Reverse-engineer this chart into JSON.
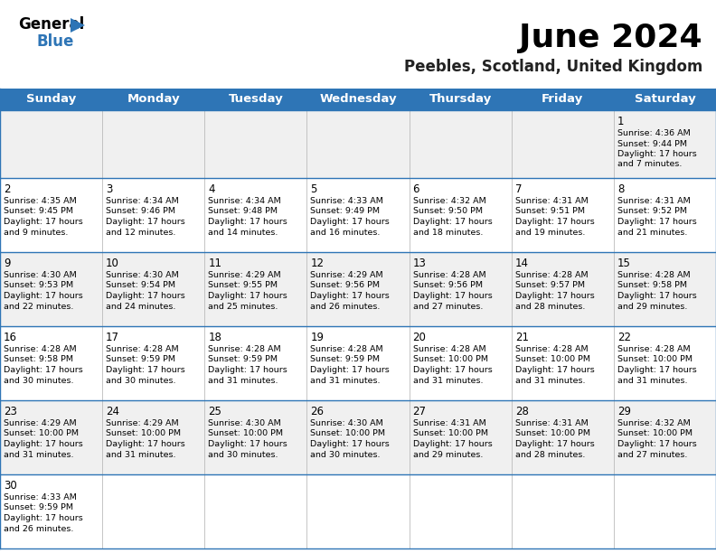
{
  "title": "June 2024",
  "subtitle": "Peebles, Scotland, United Kingdom",
  "header_color": "#2E75B6",
  "header_text_color": "#FFFFFF",
  "day_headers": [
    "Sunday",
    "Monday",
    "Tuesday",
    "Wednesday",
    "Thursday",
    "Friday",
    "Saturday"
  ],
  "bg_color": "#FFFFFF",
  "alt_row_color": "#F0F0F0",
  "cell_border_color": "#2E75B6",
  "days": [
    {
      "day": 1,
      "col": 6,
      "row": 0,
      "sunrise": "4:36 AM",
      "sunset": "9:44 PM",
      "daylight": "17 hours and 7 minutes."
    },
    {
      "day": 2,
      "col": 0,
      "row": 1,
      "sunrise": "4:35 AM",
      "sunset": "9:45 PM",
      "daylight": "17 hours and 9 minutes."
    },
    {
      "day": 3,
      "col": 1,
      "row": 1,
      "sunrise": "4:34 AM",
      "sunset": "9:46 PM",
      "daylight": "17 hours and 12 minutes."
    },
    {
      "day": 4,
      "col": 2,
      "row": 1,
      "sunrise": "4:34 AM",
      "sunset": "9:48 PM",
      "daylight": "17 hours and 14 minutes."
    },
    {
      "day": 5,
      "col": 3,
      "row": 1,
      "sunrise": "4:33 AM",
      "sunset": "9:49 PM",
      "daylight": "17 hours and 16 minutes."
    },
    {
      "day": 6,
      "col": 4,
      "row": 1,
      "sunrise": "4:32 AM",
      "sunset": "9:50 PM",
      "daylight": "17 hours and 18 minutes."
    },
    {
      "day": 7,
      "col": 5,
      "row": 1,
      "sunrise": "4:31 AM",
      "sunset": "9:51 PM",
      "daylight": "17 hours and 19 minutes."
    },
    {
      "day": 8,
      "col": 6,
      "row": 1,
      "sunrise": "4:31 AM",
      "sunset": "9:52 PM",
      "daylight": "17 hours and 21 minutes."
    },
    {
      "day": 9,
      "col": 0,
      "row": 2,
      "sunrise": "4:30 AM",
      "sunset": "9:53 PM",
      "daylight": "17 hours and 22 minutes."
    },
    {
      "day": 10,
      "col": 1,
      "row": 2,
      "sunrise": "4:30 AM",
      "sunset": "9:54 PM",
      "daylight": "17 hours and 24 minutes."
    },
    {
      "day": 11,
      "col": 2,
      "row": 2,
      "sunrise": "4:29 AM",
      "sunset": "9:55 PM",
      "daylight": "17 hours and 25 minutes."
    },
    {
      "day": 12,
      "col": 3,
      "row": 2,
      "sunrise": "4:29 AM",
      "sunset": "9:56 PM",
      "daylight": "17 hours and 26 minutes."
    },
    {
      "day": 13,
      "col": 4,
      "row": 2,
      "sunrise": "4:28 AM",
      "sunset": "9:56 PM",
      "daylight": "17 hours and 27 minutes."
    },
    {
      "day": 14,
      "col": 5,
      "row": 2,
      "sunrise": "4:28 AM",
      "sunset": "9:57 PM",
      "daylight": "17 hours and 28 minutes."
    },
    {
      "day": 15,
      "col": 6,
      "row": 2,
      "sunrise": "4:28 AM",
      "sunset": "9:58 PM",
      "daylight": "17 hours and 29 minutes."
    },
    {
      "day": 16,
      "col": 0,
      "row": 3,
      "sunrise": "4:28 AM",
      "sunset": "9:58 PM",
      "daylight": "17 hours and 30 minutes."
    },
    {
      "day": 17,
      "col": 1,
      "row": 3,
      "sunrise": "4:28 AM",
      "sunset": "9:59 PM",
      "daylight": "17 hours and 30 minutes."
    },
    {
      "day": 18,
      "col": 2,
      "row": 3,
      "sunrise": "4:28 AM",
      "sunset": "9:59 PM",
      "daylight": "17 hours and 31 minutes."
    },
    {
      "day": 19,
      "col": 3,
      "row": 3,
      "sunrise": "4:28 AM",
      "sunset": "9:59 PM",
      "daylight": "17 hours and 31 minutes."
    },
    {
      "day": 20,
      "col": 4,
      "row": 3,
      "sunrise": "4:28 AM",
      "sunset": "10:00 PM",
      "daylight": "17 hours and 31 minutes."
    },
    {
      "day": 21,
      "col": 5,
      "row": 3,
      "sunrise": "4:28 AM",
      "sunset": "10:00 PM",
      "daylight": "17 hours and 31 minutes."
    },
    {
      "day": 22,
      "col": 6,
      "row": 3,
      "sunrise": "4:28 AM",
      "sunset": "10:00 PM",
      "daylight": "17 hours and 31 minutes."
    },
    {
      "day": 23,
      "col": 0,
      "row": 4,
      "sunrise": "4:29 AM",
      "sunset": "10:00 PM",
      "daylight": "17 hours and 31 minutes."
    },
    {
      "day": 24,
      "col": 1,
      "row": 4,
      "sunrise": "4:29 AM",
      "sunset": "10:00 PM",
      "daylight": "17 hours and 31 minutes."
    },
    {
      "day": 25,
      "col": 2,
      "row": 4,
      "sunrise": "4:30 AM",
      "sunset": "10:00 PM",
      "daylight": "17 hours and 30 minutes."
    },
    {
      "day": 26,
      "col": 3,
      "row": 4,
      "sunrise": "4:30 AM",
      "sunset": "10:00 PM",
      "daylight": "17 hours and 30 minutes."
    },
    {
      "day": 27,
      "col": 4,
      "row": 4,
      "sunrise": "4:31 AM",
      "sunset": "10:00 PM",
      "daylight": "17 hours and 29 minutes."
    },
    {
      "day": 28,
      "col": 5,
      "row": 4,
      "sunrise": "4:31 AM",
      "sunset": "10:00 PM",
      "daylight": "17 hours and 28 minutes."
    },
    {
      "day": 29,
      "col": 6,
      "row": 4,
      "sunrise": "4:32 AM",
      "sunset": "10:00 PM",
      "daylight": "17 hours and 27 minutes."
    },
    {
      "day": 30,
      "col": 0,
      "row": 5,
      "sunrise": "4:33 AM",
      "sunset": "9:59 PM",
      "daylight": "17 hours and 26 minutes."
    }
  ],
  "num_rows": 6,
  "num_cols": 7
}
